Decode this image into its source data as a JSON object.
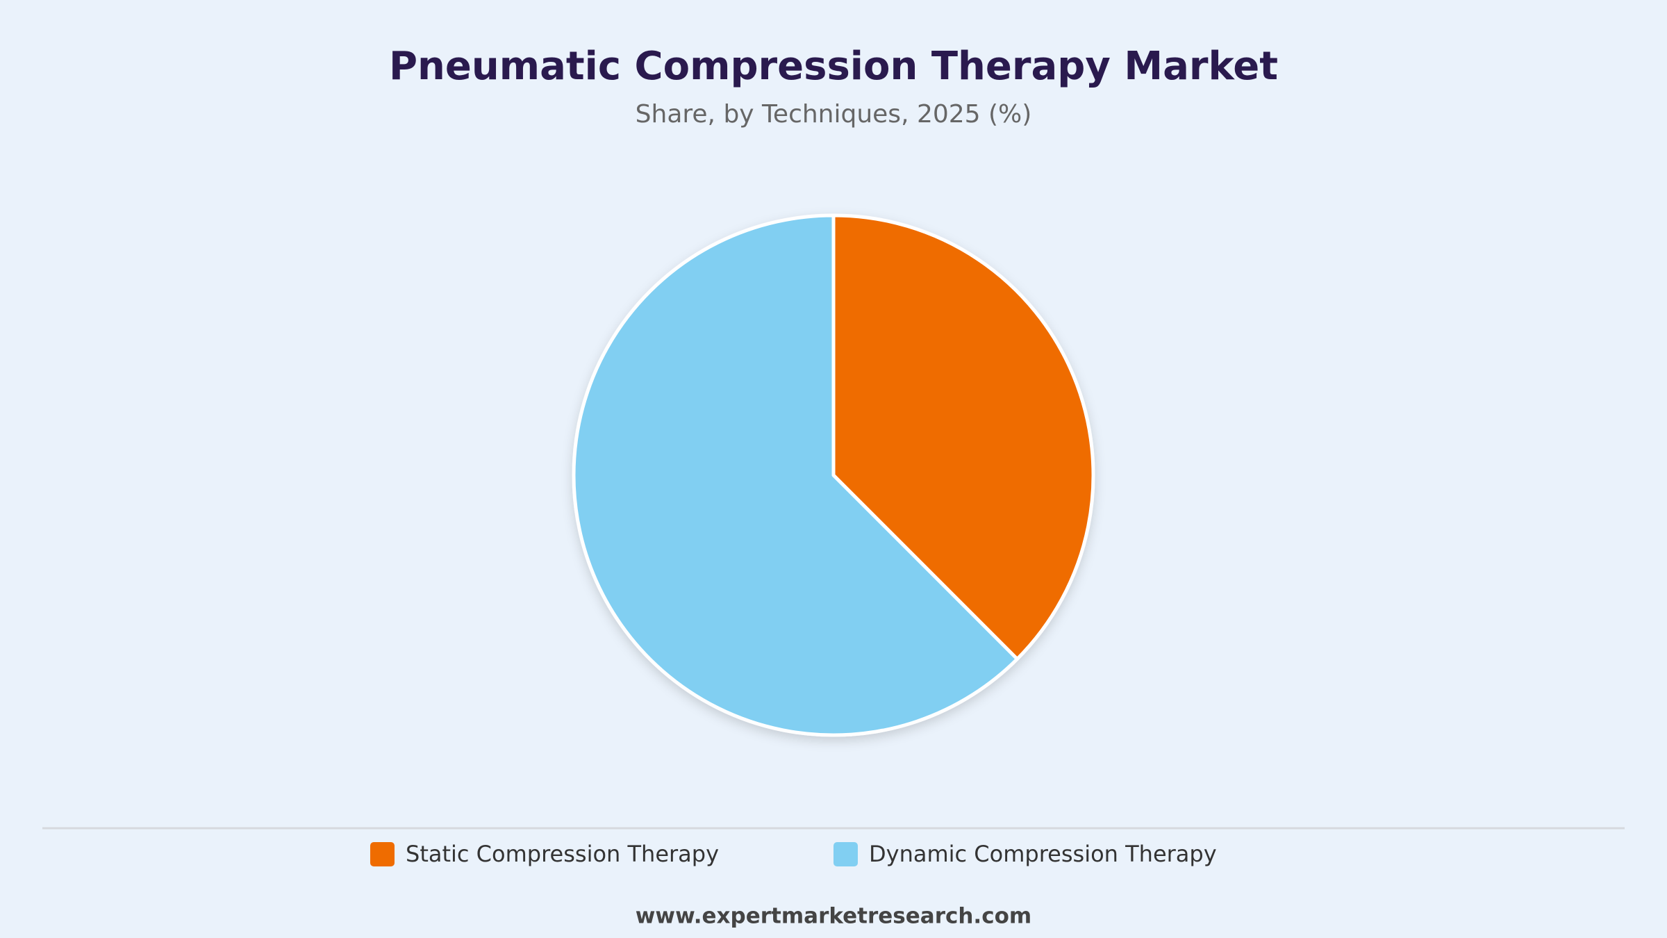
{
  "chart_data": {
    "type": "pie",
    "title": "Pneumatic Compression Therapy Market",
    "subtitle": "Share, by Techniques, 2025 (%)",
    "categories": [
      "Static Compression Therapy",
      "Dynamic Compression Therapy"
    ],
    "values": [
      37.5,
      62.5
    ],
    "colors": [
      "#ef6c00",
      "#81cff2"
    ],
    "source": "www.expertmarketresearch.com"
  }
}
